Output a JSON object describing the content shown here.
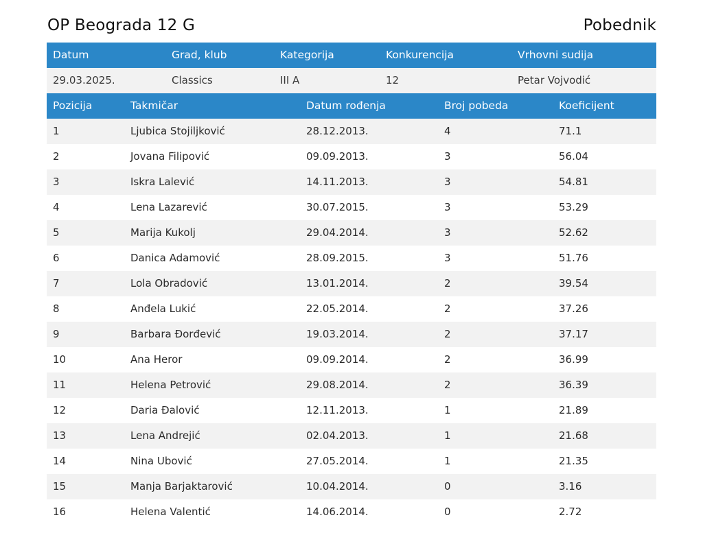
{
  "title": "OP Beograda 12 G",
  "status": "Pobednik",
  "info": {
    "headers": [
      "Datum",
      "Grad, klub",
      "Kategorija",
      "Konkurencija",
      "Vrhovni sudija"
    ],
    "values": [
      "29.03.2025.",
      "Classics",
      "III A",
      "12",
      "Petar Vojvodić"
    ]
  },
  "results": {
    "headers": [
      "Pozicija",
      "Takmičar",
      "Datum rođenja",
      "Broj pobeda",
      "Koeficijent"
    ],
    "rows": [
      [
        "1",
        "Ljubica Stojiljković",
        "28.12.2013.",
        "4",
        "71.1"
      ],
      [
        "2",
        "Jovana Filipović",
        "09.09.2013.",
        "3",
        "56.04"
      ],
      [
        "3",
        "Iskra Lalević",
        "14.11.2013.",
        "3",
        "54.81"
      ],
      [
        "4",
        "Lena Lazarević",
        "30.07.2015.",
        "3",
        "53.29"
      ],
      [
        "5",
        "Marija Kukolj",
        "29.04.2014.",
        "3",
        "52.62"
      ],
      [
        "6",
        "Danica Adamović",
        "28.09.2015.",
        "3",
        "51.76"
      ],
      [
        "7",
        "Lola Obradović",
        "13.01.2014.",
        "2",
        "39.54"
      ],
      [
        "8",
        "Anđela Lukić",
        "22.05.2014.",
        "2",
        "37.26"
      ],
      [
        "9",
        "Barbara Đorđević",
        "19.03.2014.",
        "2",
        "37.17"
      ],
      [
        "10",
        "Ana Heror",
        "09.09.2014.",
        "2",
        "36.99"
      ],
      [
        "11",
        "Helena Petrović",
        "29.08.2014.",
        "2",
        "36.39"
      ],
      [
        "12",
        "Daria Đalović",
        "12.11.2013.",
        "1",
        "21.89"
      ],
      [
        "13",
        "Lena Andrejić",
        "02.04.2013.",
        "1",
        "21.68"
      ],
      [
        "14",
        "Nina Ubović",
        "27.05.2014.",
        "1",
        "21.35"
      ],
      [
        "15",
        "Manja Barjaktarović",
        "10.04.2014.",
        "0",
        "3.16"
      ],
      [
        "16",
        "Helena Valentić",
        "14.06.2014.",
        "0",
        "2.72"
      ]
    ]
  },
  "colors": {
    "header_bg": "#2b87c8",
    "header_text": "#ffffff",
    "stripe_bg": "#f2f2f2"
  }
}
